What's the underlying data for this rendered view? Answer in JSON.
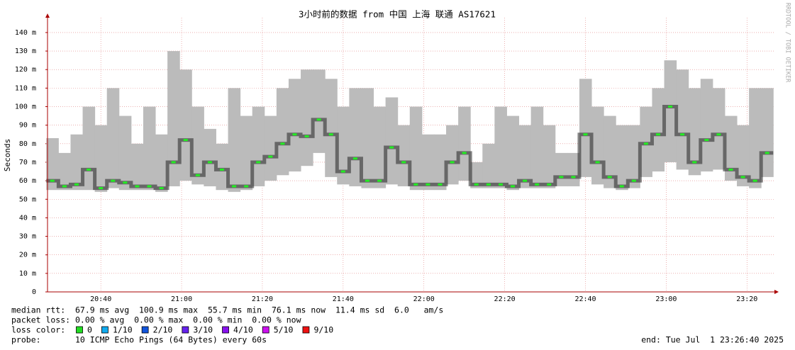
{
  "chart_data": {
    "type": "smokeping",
    "title": "3小时前的数据 from 中国 上海 联通 AS17621",
    "ylabel": "Seconds",
    "watermark": "RRDTOOL / TOBI OETIKER",
    "x": [
      1228,
      1231,
      1234,
      1237,
      1240,
      1243,
      1246,
      1249,
      1252,
      1255,
      1258,
      1261,
      1264,
      1267,
      1270,
      1273,
      1276,
      1279,
      1282,
      1285,
      1288,
      1291,
      1294,
      1297,
      1300,
      1303,
      1306,
      1309,
      1312,
      1315,
      1318,
      1321,
      1324,
      1327,
      1330,
      1333,
      1336,
      1339,
      1342,
      1345,
      1348,
      1351,
      1354,
      1357,
      1360,
      1363,
      1366,
      1369,
      1372,
      1375,
      1378,
      1381,
      1384,
      1387,
      1390,
      1393,
      1396,
      1399,
      1402,
      1405
    ],
    "values": [
      0.06,
      0.057,
      0.058,
      0.066,
      0.056,
      0.06,
      0.059,
      0.057,
      0.057,
      0.056,
      0.07,
      0.082,
      0.063,
      0.07,
      0.066,
      0.057,
      0.057,
      0.07,
      0.073,
      0.08,
      0.085,
      0.084,
      0.093,
      0.085,
      0.065,
      0.072,
      0.06,
      0.06,
      0.078,
      0.07,
      0.058,
      0.058,
      0.058,
      0.07,
      0.075,
      0.058,
      0.058,
      0.058,
      0.057,
      0.06,
      0.058,
      0.058,
      0.062,
      0.062,
      0.085,
      0.07,
      0.062,
      0.057,
      0.06,
      0.08,
      0.085,
      0.1,
      0.085,
      0.07,
      0.082,
      0.085,
      0.066,
      0.062,
      0.06,
      0.075
    ],
    "low": [
      0.055,
      0.055,
      0.055,
      0.055,
      0.054,
      0.056,
      0.055,
      0.055,
      0.055,
      0.054,
      0.057,
      0.06,
      0.058,
      0.057,
      0.055,
      0.054,
      0.055,
      0.057,
      0.06,
      0.063,
      0.065,
      0.068,
      0.075,
      0.062,
      0.058,
      0.057,
      0.056,
      0.056,
      0.058,
      0.057,
      0.055,
      0.055,
      0.055,
      0.058,
      0.06,
      0.056,
      0.056,
      0.056,
      0.055,
      0.056,
      0.056,
      0.056,
      0.057,
      0.057,
      0.062,
      0.058,
      0.056,
      0.055,
      0.056,
      0.062,
      0.065,
      0.07,
      0.066,
      0.063,
      0.065,
      0.066,
      0.06,
      0.057,
      0.056,
      0.062
    ],
    "high": [
      0.083,
      0.075,
      0.085,
      0.1,
      0.09,
      0.11,
      0.095,
      0.08,
      0.1,
      0.085,
      0.13,
      0.12,
      0.1,
      0.088,
      0.08,
      0.11,
      0.095,
      0.1,
      0.095,
      0.11,
      0.115,
      0.12,
      0.12,
      0.115,
      0.1,
      0.11,
      0.11,
      0.1,
      0.105,
      0.09,
      0.1,
      0.085,
      0.085,
      0.09,
      0.1,
      0.07,
      0.08,
      0.1,
      0.095,
      0.09,
      0.1,
      0.09,
      0.075,
      0.075,
      0.115,
      0.1,
      0.095,
      0.09,
      0.09,
      0.1,
      0.11,
      0.125,
      0.12,
      0.11,
      0.115,
      0.11,
      0.095,
      0.09,
      0.11,
      0.11
    ],
    "median_color": "#22ee22",
    "smoke_color": "#bbbbbb",
    "xlim": [
      1226.8,
      1406.8
    ],
    "xticks": [
      {
        "value": 1240,
        "label": "20:40"
      },
      {
        "value": 1260,
        "label": "21:00"
      },
      {
        "value": 1280,
        "label": "21:20"
      },
      {
        "value": 1300,
        "label": "21:40"
      },
      {
        "value": 1320,
        "label": "22:00"
      },
      {
        "value": 1340,
        "label": "22:20"
      },
      {
        "value": 1360,
        "label": "22:40"
      },
      {
        "value": 1380,
        "label": "23:00"
      },
      {
        "value": 1400,
        "label": "23:20"
      }
    ],
    "ylim": [
      0,
      0.148
    ],
    "yticks": [
      0,
      {
        "value": 0.01,
        "label": "10 m"
      },
      {
        "value": 0.02,
        "label": "20 m"
      },
      {
        "value": 0.03,
        "label": "30 m"
      },
      {
        "value": 0.04,
        "label": "40 m"
      },
      {
        "value": 0.05,
        "label": "50 m"
      },
      {
        "value": 0.06,
        "label": "60 m"
      },
      {
        "value": 0.07,
        "label": "70 m"
      },
      {
        "value": 0.08,
        "label": "80 m"
      },
      {
        "value": 0.09,
        "label": "90 m"
      },
      {
        "value": 0.1,
        "label": "100 m"
      },
      {
        "value": 0.11,
        "label": "110 m"
      },
      {
        "value": 0.12,
        "label": "120 m"
      },
      {
        "value": 0.13,
        "label": "130 m"
      },
      {
        "value": 0.14,
        "label": "140 m"
      }
    ],
    "grid": true,
    "info": {
      "median": "median rtt:  67.9 ms avg  100.9 ms max  55.7 ms min  76.1 ms now  11.4 ms sd  6.0   am/s",
      "loss": "packet loss: 0.00 % avg  0.00 % max  0.00 % min  0.00 % now",
      "loss_label": "loss color:",
      "loss_colors": [
        {
          "label": "0",
          "color": "#22dd22"
        },
        {
          "label": "1/10",
          "color": "#11aaee"
        },
        {
          "label": "2/10",
          "color": "#1155dd"
        },
        {
          "label": "3/10",
          "color": "#6622ee"
        },
        {
          "label": "4/10",
          "color": "#8811ee"
        },
        {
          "label": "5/10",
          "color": "#cc11ee"
        },
        {
          "label": "9/10",
          "color": "#ee1111"
        }
      ],
      "probe": "probe:       10 ICMP Echo Pings (64 Bytes) every 60s",
      "end": "end: Tue Jul  1 23:26:40 2025"
    }
  }
}
